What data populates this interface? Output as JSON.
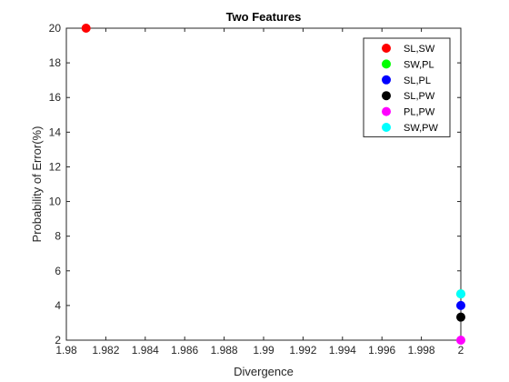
{
  "chart_data": {
    "type": "scatter",
    "title": "Two Features",
    "xlabel": "Divergence",
    "ylabel": "Probability of Error(%)",
    "xlim": [
      1.98,
      2.0
    ],
    "ylim": [
      2,
      20
    ],
    "x_ticks": [
      "1.98",
      "1.982",
      "1.984",
      "1.986",
      "1.988",
      "1.99",
      "1.992",
      "1.994",
      "1.996",
      "1.998",
      "2"
    ],
    "y_ticks": [
      "2",
      "4",
      "6",
      "8",
      "10",
      "12",
      "14",
      "16",
      "18",
      "20"
    ],
    "grid": false,
    "legend_position": "top-right",
    "series": [
      {
        "name": "SL,SW",
        "color": "#ff0000",
        "x": [
          1.981
        ],
        "y": [
          20
        ]
      },
      {
        "name": "SW,PL",
        "color": "#00ff00",
        "x": [
          2.0
        ],
        "y": [
          4.67
        ]
      },
      {
        "name": "SL,PL",
        "color": "#0000ff",
        "x": [
          2.0
        ],
        "y": [
          4.0
        ]
      },
      {
        "name": "SL,PW",
        "color": "#000000",
        "x": [
          2.0
        ],
        "y": [
          3.33
        ]
      },
      {
        "name": "PL,PW",
        "color": "#ff00ff",
        "x": [
          2.0
        ],
        "y": [
          2.0
        ]
      },
      {
        "name": "SW,PW",
        "color": "#00ffff",
        "x": [
          2.0
        ],
        "y": [
          4.67
        ]
      }
    ]
  }
}
